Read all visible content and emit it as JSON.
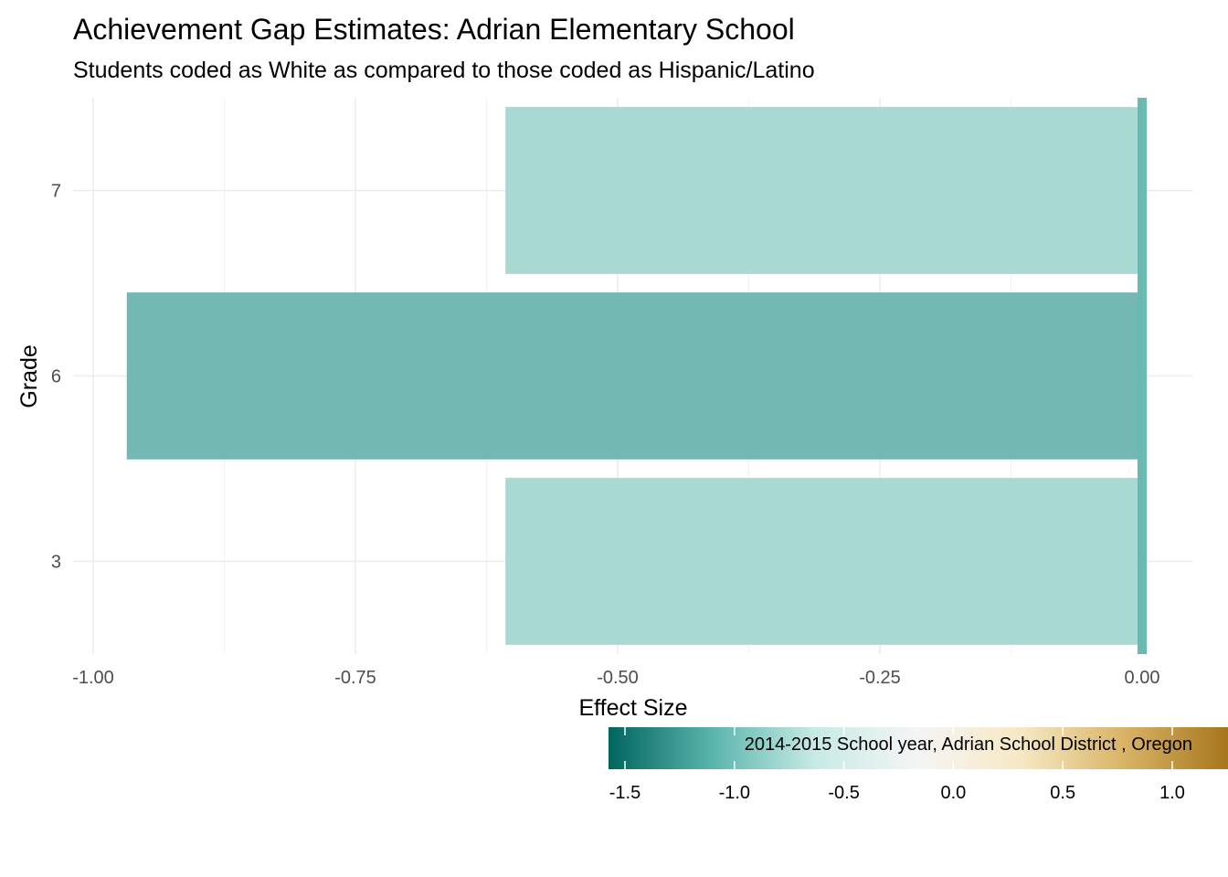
{
  "chart_data": {
    "type": "bar",
    "orientation": "horizontal",
    "title": "Achievement Gap Estimates: Adrian Elementary School",
    "subtitle": "Students coded as White as compared to those coded as Hispanic/Latino",
    "xlabel": "Effect Size",
    "ylabel": "Grade",
    "categories": [
      "3",
      "6",
      "7"
    ],
    "values": [
      -0.607,
      -0.968,
      -0.607
    ],
    "xlim": [
      -1.0,
      0.0
    ],
    "x_ticks": [
      "-1.00",
      "-0.75",
      "-0.50",
      "-0.25",
      "0.00"
    ],
    "grid": true,
    "legend": {
      "position": "bottom-right",
      "type": "colorbar",
      "caption": "2014-2015 School year,  Adrian School District , Oregon",
      "range": [
        -1.5,
        1.0
      ],
      "ticks": [
        "-1.5",
        "-1.0",
        "-0.5",
        "0.0",
        "0.5",
        "1.0"
      ],
      "colors": [
        "#01665e",
        "#5ab4ac",
        "#c7eae5",
        "#f5f5f5",
        "#f6e8c3",
        "#d8b365",
        "#a6761d"
      ]
    },
    "bar_colors": [
      "#a8d9d2",
      "#73b8b2",
      "#a8d9d2"
    ],
    "zero_line_color": "#6bbab2"
  }
}
